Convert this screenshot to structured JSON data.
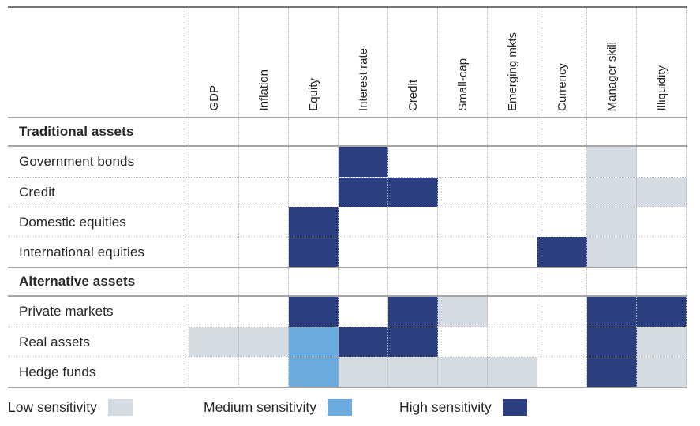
{
  "chart_data": {
    "type": "heatmap",
    "title": "",
    "columns": [
      "GDP",
      "Inflation",
      "Equity",
      "Interest rate",
      "Credit",
      "Small-cap",
      "Emerging mkts",
      "Currency",
      "Manager skill",
      "Illiquidity"
    ],
    "rows": [
      {
        "label": "Traditional assets",
        "section": true,
        "values": [
          0,
          0,
          0,
          0,
          0,
          0,
          0,
          0,
          0,
          0
        ]
      },
      {
        "label": "Government bonds",
        "section": false,
        "values": [
          0,
          0,
          0,
          3,
          0,
          0,
          0,
          0,
          1,
          0
        ]
      },
      {
        "label": "Credit",
        "section": false,
        "values": [
          0,
          0,
          0,
          3,
          3,
          0,
          0,
          0,
          1,
          1
        ]
      },
      {
        "label": "Domestic equities",
        "section": false,
        "values": [
          0,
          0,
          3,
          0,
          0,
          0,
          0,
          0,
          1,
          0
        ]
      },
      {
        "label": "International equities",
        "section": false,
        "values": [
          0,
          0,
          3,
          0,
          0,
          0,
          0,
          3,
          1,
          0
        ]
      },
      {
        "label": "Alternative assets",
        "section": true,
        "values": [
          0,
          0,
          0,
          0,
          0,
          0,
          0,
          0,
          0,
          0
        ]
      },
      {
        "label": "Private markets",
        "section": false,
        "values": [
          0,
          0,
          3,
          0,
          3,
          1,
          0,
          0,
          3,
          3
        ]
      },
      {
        "label": "Real assets",
        "section": false,
        "values": [
          1,
          1,
          2,
          3,
          3,
          0,
          0,
          0,
          3,
          1
        ]
      },
      {
        "label": "Hedge funds",
        "section": false,
        "values": [
          0,
          0,
          2,
          1,
          1,
          1,
          1,
          0,
          3,
          1
        ]
      }
    ],
    "levels": {
      "0": "none",
      "1": "low",
      "2": "medium",
      "3": "high"
    },
    "colors": {
      "none": "#ffffff",
      "low": "#d5dbe3",
      "medium": "#6aaade",
      "high": "#2b3e80"
    },
    "legend": [
      {
        "label": "Low sensitivity",
        "level": "low"
      },
      {
        "label": "Medium sensitivity",
        "level": "medium"
      },
      {
        "label": "High sensitivity",
        "level": "high"
      }
    ],
    "layout": {
      "grid": "dotted",
      "legend_position": "bottom",
      "column_labels_rotated": true
    }
  }
}
